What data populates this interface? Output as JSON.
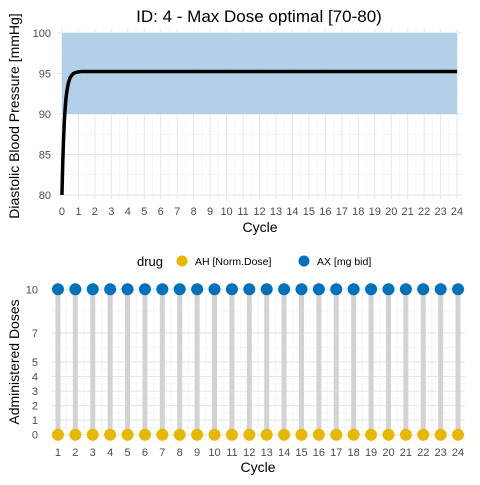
{
  "chart_data": [
    {
      "type": "line",
      "title": "ID: 4 -  Max Dose optimal [70-80)",
      "xlabel": "Cycle",
      "ylabel": "Diastolic Blood Pressure [mmHg]",
      "xlim": [
        -0.3,
        24.3
      ],
      "ylim": [
        79.5,
        100.5
      ],
      "x_ticks": [
        "0",
        "1",
        "2",
        "3",
        "4",
        "5",
        "6",
        "7",
        "8",
        "9",
        "10",
        "11",
        "12",
        "13",
        "14",
        "15",
        "16",
        "17",
        "18",
        "19",
        "20",
        "21",
        "22",
        "23",
        "24"
      ],
      "y_ticks": [
        "80",
        "85",
        "90",
        "95",
        "100"
      ],
      "grid": true,
      "target_band": {
        "ymin": 90,
        "ymax": 100,
        "color": "#aecde8"
      },
      "series": [
        {
          "color": "#000000",
          "x": [
            0,
            0.05,
            0.1,
            0.15,
            0.2,
            0.25,
            0.3,
            0.35,
            0.4,
            0.5,
            0.6,
            0.7,
            0.8,
            0.9,
            1.0,
            1.2,
            1.5,
            2,
            3,
            5,
            8,
            12,
            16,
            20,
            24
          ],
          "y": [
            80,
            84,
            87,
            89.3,
            90.8,
            92,
            92.8,
            93.4,
            93.9,
            94.5,
            94.8,
            95.0,
            95.1,
            95.15,
            95.2,
            95.25,
            95.25,
            95.25,
            95.25,
            95.25,
            95.25,
            95.25,
            95.25,
            95.25,
            95.25
          ]
        }
      ]
    },
    {
      "type": "scatter",
      "xlabel": "Cycle",
      "ylabel": "Administered Doses",
      "xlim": [
        0.6,
        24.4
      ],
      "ylim": [
        -0.5,
        10.5
      ],
      "x_ticks": [
        "1",
        "2",
        "3",
        "4",
        "5",
        "6",
        "7",
        "8",
        "9",
        "10",
        "11",
        "12",
        "13",
        "14",
        "15",
        "16",
        "17",
        "18",
        "19",
        "20",
        "21",
        "22",
        "23",
        "24"
      ],
      "y_ticks": [
        "0",
        "1",
        "2",
        "3",
        "4",
        "5",
        "7",
        "10"
      ],
      "grid": true,
      "legend_title": "drug",
      "legend_position": "top",
      "series": [
        {
          "name": "AH [Norm.Dose]",
          "color": "#e7b800",
          "x": [
            1,
            2,
            3,
            4,
            5,
            6,
            7,
            8,
            9,
            10,
            11,
            12,
            13,
            14,
            15,
            16,
            17,
            18,
            19,
            20,
            21,
            22,
            23,
            24
          ],
          "y": [
            0,
            0,
            0,
            0,
            0,
            0,
            0,
            0,
            0,
            0,
            0,
            0,
            0,
            0,
            0,
            0,
            0,
            0,
            0,
            0,
            0,
            0,
            0,
            0
          ]
        },
        {
          "name": "AX [mg bid]",
          "color": "#0072bc",
          "x": [
            1,
            2,
            3,
            4,
            5,
            6,
            7,
            8,
            9,
            10,
            11,
            12,
            13,
            14,
            15,
            16,
            17,
            18,
            19,
            20,
            21,
            22,
            23,
            24
          ],
          "y": [
            10,
            10,
            10,
            10,
            10,
            10,
            10,
            10,
            10,
            10,
            10,
            10,
            10,
            10,
            10,
            10,
            10,
            10,
            10,
            10,
            10,
            10,
            10,
            10
          ]
        }
      ],
      "segment_color": "#d3d3d3"
    }
  ]
}
